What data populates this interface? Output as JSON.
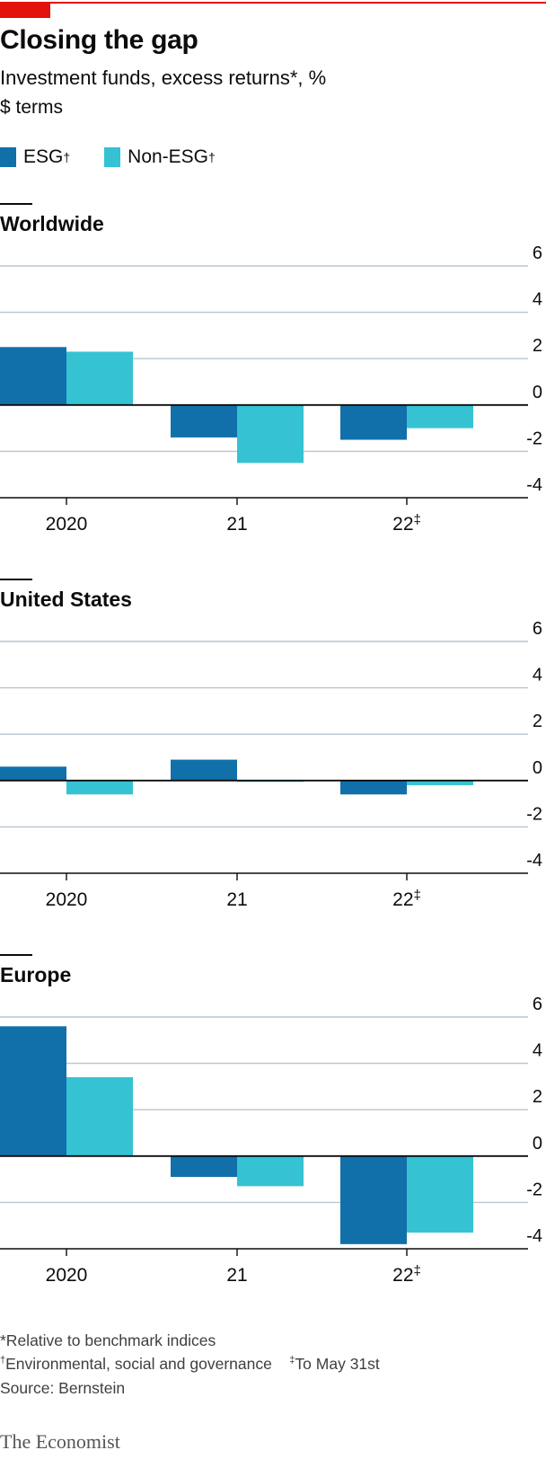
{
  "header": {
    "title": "Closing the gap",
    "subtitle": "Investment funds, excess returns*, %",
    "unit": "$ terms"
  },
  "legend": [
    {
      "label": "ESG",
      "mark": "†",
      "color": "#1170aa"
    },
    {
      "label": "Non-ESG",
      "mark": "†",
      "color": "#35c2d3"
    }
  ],
  "chart_data": [
    {
      "type": "bar",
      "title": "Worldwide",
      "categories": [
        "2020",
        "21",
        "22"
      ],
      "category_marks": [
        "",
        "",
        "‡"
      ],
      "series": [
        {
          "name": "ESG",
          "values": [
            2.5,
            -1.4,
            -1.5
          ]
        },
        {
          "name": "Non-ESG",
          "values": [
            2.3,
            -2.5,
            -1.0
          ]
        }
      ],
      "ylim": [
        -4,
        6
      ],
      "yticks": [
        6,
        4,
        2,
        0,
        -2,
        -4
      ],
      "grid": true
    },
    {
      "type": "bar",
      "title": "United States",
      "categories": [
        "2020",
        "21",
        "22"
      ],
      "category_marks": [
        "",
        "",
        "‡"
      ],
      "series": [
        {
          "name": "ESG",
          "values": [
            0.6,
            0.9,
            -0.6
          ]
        },
        {
          "name": "Non-ESG",
          "values": [
            -0.6,
            0.0,
            -0.2
          ]
        }
      ],
      "ylim": [
        -4,
        6
      ],
      "yticks": [
        6,
        4,
        2,
        0,
        -2,
        -4
      ],
      "grid": true
    },
    {
      "type": "bar",
      "title": "Europe",
      "categories": [
        "2020",
        "21",
        "22"
      ],
      "category_marks": [
        "",
        "",
        "‡"
      ],
      "series": [
        {
          "name": "ESG",
          "values": [
            5.6,
            -0.9,
            -3.8
          ]
        },
        {
          "name": "Non-ESG",
          "values": [
            3.4,
            -1.3,
            -3.3
          ]
        }
      ],
      "ylim": [
        -4,
        6
      ],
      "yticks": [
        6,
        4,
        2,
        0,
        -2,
        -4
      ],
      "grid": true
    }
  ],
  "footnotes": {
    "note1": "*Relative to benchmark indices",
    "note2_mark": "†",
    "note2": "Environmental, social and governance",
    "note3_mark": "‡",
    "note3": "To May 31st",
    "source": "Source: Bernstein"
  },
  "brand": "The Economist"
}
